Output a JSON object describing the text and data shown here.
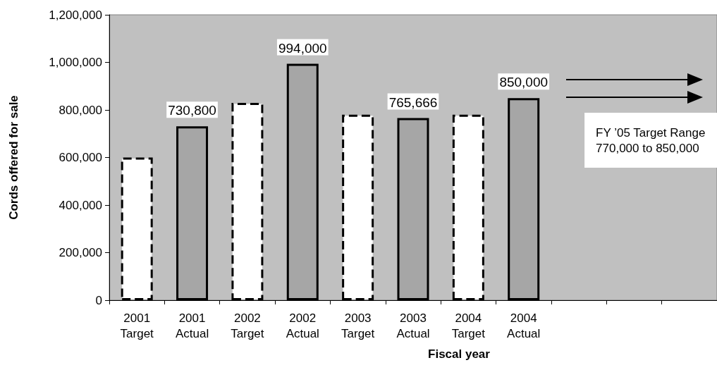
{
  "chart_data": {
    "type": "bar",
    "categories": [
      "2001\nTarget",
      "2001\nActual",
      "2002\nTarget",
      "2002\nActual",
      "2003\nTarget",
      "2003\nActual",
      "2004\nTarget",
      "2004\nActual",
      null,
      null,
      null
    ],
    "series": [
      {
        "color": "#ffffff",
        "line_style": "dashed",
        "values": [
          600000,
          null,
          830000,
          null,
          780000,
          null,
          780000,
          null,
          null,
          null,
          null
        ]
      },
      {
        "color": "#a6a6a6",
        "line_style": "solid",
        "values": [
          null,
          730800,
          null,
          994000,
          null,
          765666,
          null,
          850000,
          null,
          null,
          null
        ],
        "value_labels": [
          null,
          "730,800",
          null,
          "994,000",
          null,
          "765,666",
          null,
          "850,000",
          null,
          null,
          null
        ]
      }
    ],
    "xlabel": "Fiscal year",
    "ylabel": "Cords offered for sale",
    "ylim": [
      0,
      1200000
    ],
    "yticks": [
      {
        "value": 0,
        "label": "0"
      },
      {
        "value": 200000,
        "label": "200,000"
      },
      {
        "value": 400000,
        "label": "400,000"
      },
      {
        "value": 600000,
        "label": "600,000"
      },
      {
        "value": 800000,
        "label": "800,000"
      },
      {
        "value": 1000000,
        "label": "1,000,000"
      },
      {
        "value": 1200000,
        "label": "1,200,000"
      }
    ],
    "annotations": [
      "FY ’05 Target Range\n770,000 to 850,000"
    ],
    "grid": false
  }
}
